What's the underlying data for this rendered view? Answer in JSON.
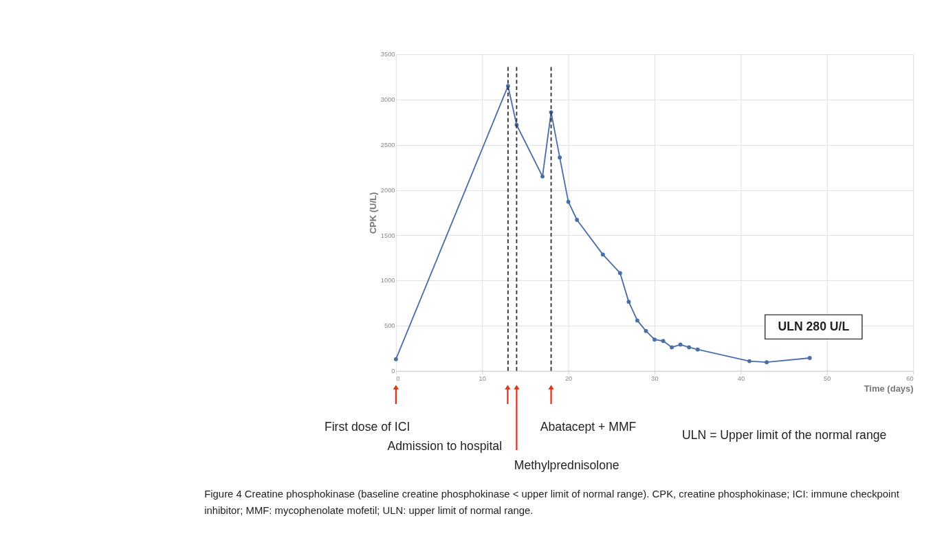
{
  "chart_data": {
    "type": "line",
    "xlabel": "Time (days)",
    "ylabel": "CPK (U/L)",
    "x": [
      0,
      13,
      14,
      17,
      18,
      19,
      20,
      21,
      24,
      26,
      27,
      28,
      29,
      30,
      31,
      32,
      33,
      34,
      35,
      41,
      43,
      48
    ],
    "series": [
      {
        "color": "#4a6fa8",
        "values": [
          130,
          3150,
          2720,
          2150,
          2860,
          2360,
          1870,
          1670,
          1287,
          1082,
          765,
          558,
          442,
          347,
          331,
          261,
          291,
          261,
          237,
          108,
          96,
          143
        ]
      }
    ],
    "xlim": [
      0,
      60
    ],
    "xticks": [
      0,
      10,
      20,
      30,
      40,
      50,
      60
    ],
    "ylim": [
      0,
      3500
    ],
    "yticks": [
      0,
      500,
      1000,
      1500,
      2000,
      2500,
      3000,
      3500
    ],
    "grid": true,
    "marker": "circle",
    "line_style": "solid",
    "ref_lines": [
      {
        "axis": "x",
        "value": 13,
        "color": "#333333",
        "line_style": "dashed"
      },
      {
        "axis": "x",
        "value": 14,
        "color": "#333333",
        "line_style": "dashed"
      },
      {
        "axis": "x",
        "value": 18,
        "color": "#333333",
        "line_style": "dashed"
      }
    ],
    "annotations": [
      "First dose of ICI",
      "Admission to hospital",
      "Methylprednisolone",
      "Abatacept + MMF",
      "ULN 280 U/L",
      "ULN = Upper limit of the normal range",
      "Figure 4 Creatine phosphokinase (baseline creatine phosphokinase < upper limit of normal range). CPK, creatine phosphokinase; ICI: immune checkpoint inhibitor; MMF: mycophenolate mofetil; ULN: upper limit of normal range."
    ]
  }
}
